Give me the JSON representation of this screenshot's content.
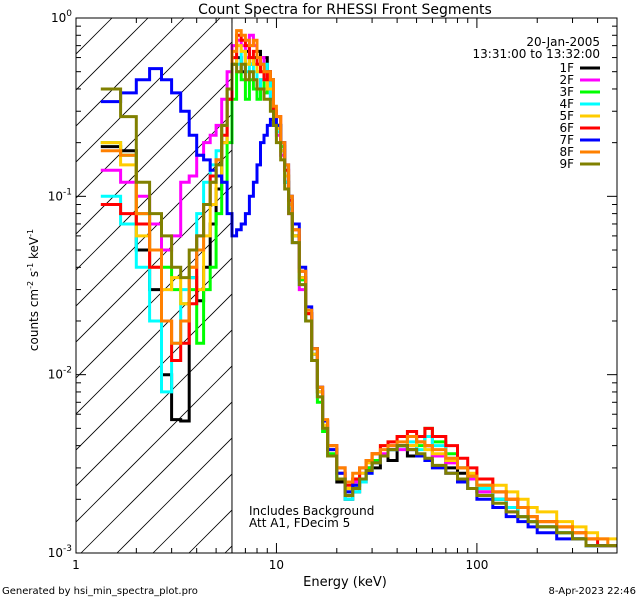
{
  "chart_data": {
    "type": "line",
    "title": "Count Spectra for RHESSI Front Segments",
    "xlabel": "Energy (keV)",
    "ylabel_main": "counts cm",
    "ylabel_sup1": "-2",
    "ylabel_mid": " s",
    "ylabel_sup2": "-1",
    "ylabel_end": " keV",
    "ylabel_sup3": "-1",
    "xscale": "log",
    "yscale": "log",
    "xlim": [
      1,
      500
    ],
    "ylim": [
      0.001,
      1
    ],
    "x_ticks": [
      {
        "value": 1,
        "label": "1"
      },
      {
        "value": 10,
        "label": "10"
      },
      {
        "value": 100,
        "label": "100"
      }
    ],
    "y_ticks": [
      {
        "value": 0.001,
        "base": "10",
        "exp": "-3"
      },
      {
        "value": 0.01,
        "base": "10",
        "exp": "-2"
      },
      {
        "value": 0.1,
        "base": "10",
        "exp": "-1"
      },
      {
        "value": 1,
        "base": "10",
        "exp": "0"
      }
    ],
    "date": "20-Jan-2005",
    "time_range": "13:31:00 to 13:32:00",
    "annotation_line1": "Includes Background",
    "annotation_line2": "Att A1, FDecim 5",
    "attenuator_edge_kev": 6,
    "footer_left": "Generated by hsi_min_spectra_plot.pro",
    "footer_right": "8-Apr-2023 22:46",
    "legend_position": "top-right",
    "energy_bins": [
      1.33,
      1.67,
      2.0,
      2.33,
      2.67,
      3.0,
      3.33,
      3.67,
      4.0,
      4.33,
      4.67,
      5.0,
      5.33,
      5.67,
      6.0,
      6.33,
      6.67,
      7.0,
      7.33,
      7.67,
      8.0,
      8.33,
      8.67,
      9.0,
      9.33,
      9.67,
      10.0,
      10.5,
      11.0,
      11.5,
      12.0,
      13.0,
      14.0,
      15.0,
      16.0,
      17.0,
      18.0,
      20.0,
      22.0,
      24.0,
      26.0,
      28.0,
      30.0,
      33.0,
      36.0,
      40.0,
      45.0,
      50.0,
      55.0,
      60.0,
      70.0,
      80.0,
      90.0,
      100.0,
      120.0,
      140.0,
      160.0,
      180.0,
      200.0,
      250.0,
      300.0,
      350.0,
      400.0,
      450.0,
      500.0
    ],
    "series": [
      {
        "name": "1F",
        "color": "#000000",
        "values": [
          0.19,
          0.18,
          0.05,
          0.03,
          0.01,
          0.0056,
          0.0055,
          0.035,
          0.026,
          0.04,
          0.07,
          0.11,
          0.2,
          0.35,
          0.55,
          0.6,
          0.5,
          0.65,
          0.55,
          0.6,
          0.65,
          0.55,
          0.6,
          0.5,
          0.4,
          0.25,
          0.25,
          0.18,
          0.12,
          0.09,
          0.06,
          0.035,
          0.022,
          0.013,
          0.008,
          0.005,
          0.0035,
          0.0025,
          0.002,
          0.0022,
          0.0025,
          0.003,
          0.003,
          0.0035,
          0.0033,
          0.004,
          0.0035,
          0.0045,
          0.004,
          0.0035,
          0.003,
          0.0028,
          0.0026,
          0.0022,
          0.002,
          0.0018,
          0.0016,
          0.0015,
          0.0014,
          0.0013,
          0.0012,
          0.0011,
          0.0011,
          0.0011
        ]
      },
      {
        "name": "2F",
        "color": "#ff00ff",
        "values": [
          0.14,
          0.12,
          0.1,
          0.07,
          0.05,
          0.06,
          0.12,
          0.13,
          0.17,
          0.2,
          0.22,
          0.25,
          0.35,
          0.5,
          0.7,
          0.75,
          0.7,
          0.6,
          0.8,
          0.7,
          0.55,
          0.6,
          0.5,
          0.45,
          0.35,
          0.3,
          0.22,
          0.17,
          0.12,
          0.08,
          0.055,
          0.03,
          0.02,
          0.012,
          0.008,
          0.005,
          0.0038,
          0.0028,
          0.0022,
          0.0025,
          0.0028,
          0.003,
          0.0032,
          0.0036,
          0.004,
          0.0038,
          0.004,
          0.0042,
          0.004,
          0.0035,
          0.0032,
          0.003,
          0.0026,
          0.0022,
          0.002,
          0.0017,
          0.0016,
          0.0015,
          0.0014,
          0.0013,
          0.0012,
          0.0011,
          0.0011,
          0.0011
        ]
      },
      {
        "name": "3F",
        "color": "#00ff00",
        "values": [
          0.2,
          0.17,
          0.08,
          0.05,
          0.04,
          0.03,
          0.025,
          0.03,
          0.015,
          0.03,
          0.04,
          0.08,
          0.12,
          0.2,
          0.35,
          0.5,
          0.45,
          0.35,
          0.45,
          0.4,
          0.35,
          0.45,
          0.38,
          0.4,
          0.45,
          0.3,
          0.25,
          0.19,
          0.13,
          0.09,
          0.06,
          0.034,
          0.02,
          0.012,
          0.007,
          0.0048,
          0.0036,
          0.0026,
          0.0022,
          0.0024,
          0.0026,
          0.003,
          0.0033,
          0.0035,
          0.0038,
          0.004,
          0.0045,
          0.004,
          0.005,
          0.0042,
          0.0036,
          0.003,
          0.0027,
          0.0024,
          0.002,
          0.0018,
          0.0016,
          0.0015,
          0.0014,
          0.0013,
          0.0012,
          0.0011,
          0.0011,
          0.0011
        ]
      },
      {
        "name": "4F",
        "color": "#00ffff",
        "values": [
          0.1,
          0.07,
          0.04,
          0.02,
          0.008,
          0.015,
          0.03,
          0.035,
          0.08,
          0.12,
          0.15,
          0.18,
          0.25,
          0.4,
          0.6,
          0.55,
          0.65,
          0.5,
          0.55,
          0.5,
          0.4,
          0.45,
          0.55,
          0.45,
          0.35,
          0.28,
          0.23,
          0.18,
          0.12,
          0.085,
          0.055,
          0.032,
          0.02,
          0.013,
          0.0075,
          0.005,
          0.0035,
          0.0026,
          0.002,
          0.0022,
          0.0025,
          0.0028,
          0.0032,
          0.0035,
          0.0038,
          0.004,
          0.0042,
          0.0038,
          0.0045,
          0.004,
          0.0034,
          0.003,
          0.0027,
          0.0023,
          0.002,
          0.0018,
          0.0016,
          0.0015,
          0.0014,
          0.0013,
          0.0012,
          0.0011,
          0.0011,
          0.0011
        ]
      },
      {
        "name": "5F",
        "color": "#ffcc00",
        "values": [
          0.2,
          0.15,
          0.06,
          0.04,
          0.03,
          0.035,
          0.025,
          0.04,
          0.03,
          0.06,
          0.09,
          0.13,
          0.2,
          0.35,
          0.55,
          0.7,
          0.65,
          0.55,
          0.6,
          0.55,
          0.5,
          0.5,
          0.45,
          0.4,
          0.4,
          0.3,
          0.24,
          0.18,
          0.13,
          0.09,
          0.06,
          0.035,
          0.022,
          0.013,
          0.008,
          0.0052,
          0.0038,
          0.0028,
          0.0023,
          0.0026,
          0.0028,
          0.0032,
          0.0036,
          0.004,
          0.0042,
          0.0045,
          0.004,
          0.0042,
          0.0038,
          0.0036,
          0.0033,
          0.003,
          0.0028,
          0.0026,
          0.0024,
          0.0022,
          0.002,
          0.0018,
          0.0017,
          0.0015,
          0.0014,
          0.0013,
          0.0012,
          0.0012
        ]
      },
      {
        "name": "6F",
        "color": "#ff0000",
        "values": [
          0.09,
          0.08,
          0.07,
          0.04,
          0.02,
          0.012,
          0.015,
          0.025,
          0.06,
          0.09,
          0.13,
          0.16,
          0.22,
          0.35,
          0.6,
          0.8,
          0.75,
          0.7,
          0.6,
          0.65,
          0.55,
          0.5,
          0.45,
          0.5,
          0.45,
          0.3,
          0.28,
          0.2,
          0.14,
          0.095,
          0.065,
          0.038,
          0.022,
          0.014,
          0.0085,
          0.0055,
          0.004,
          0.003,
          0.0024,
          0.0026,
          0.003,
          0.0033,
          0.0036,
          0.004,
          0.0042,
          0.0045,
          0.0048,
          0.0045,
          0.005,
          0.0045,
          0.004,
          0.0034,
          0.003,
          0.0026,
          0.0022,
          0.002,
          0.0018,
          0.0016,
          0.0015,
          0.0014,
          0.0013,
          0.0012,
          0.0011,
          0.0011
        ]
      },
      {
        "name": "7F",
        "color": "#0000ff",
        "values": [
          0.34,
          0.38,
          0.45,
          0.52,
          0.45,
          0.38,
          0.3,
          0.22,
          0.17,
          0.16,
          0.14,
          0.13,
          0.12,
          0.08,
          0.06,
          0.065,
          0.07,
          0.08,
          0.1,
          0.12,
          0.15,
          0.2,
          0.22,
          0.25,
          0.27,
          0.3,
          0.25,
          0.2,
          0.15,
          0.1,
          0.07,
          0.04,
          0.024,
          0.014,
          0.0085,
          0.0055,
          0.0038,
          0.0028,
          0.0022,
          0.0024,
          0.0026,
          0.0028,
          0.0032,
          0.0035,
          0.0038,
          0.004,
          0.0038,
          0.0035,
          0.0033,
          0.003,
          0.0028,
          0.0025,
          0.0023,
          0.002,
          0.0018,
          0.0016,
          0.0015,
          0.0014,
          0.0013,
          0.0012,
          0.0012,
          0.0011,
          0.0011,
          0.0011
        ]
      },
      {
        "name": "8F",
        "color": "#ff8000",
        "values": [
          0.18,
          0.17,
          0.08,
          0.05,
          0.02,
          0.015,
          0.02,
          0.04,
          0.05,
          0.09,
          0.12,
          0.16,
          0.25,
          0.4,
          0.65,
          0.85,
          0.8,
          0.75,
          0.7,
          0.75,
          0.6,
          0.55,
          0.5,
          0.5,
          0.45,
          0.32,
          0.28,
          0.2,
          0.15,
          0.1,
          0.065,
          0.038,
          0.023,
          0.014,
          0.0085,
          0.0056,
          0.004,
          0.003,
          0.0025,
          0.0028,
          0.003,
          0.0033,
          0.0036,
          0.0038,
          0.004,
          0.0042,
          0.0045,
          0.0042,
          0.004,
          0.0038,
          0.0034,
          0.003,
          0.0027,
          0.0024,
          0.0022,
          0.002,
          0.0018,
          0.0016,
          0.0015,
          0.0014,
          0.0013,
          0.0012,
          0.0012,
          0.0011
        ]
      },
      {
        "name": "9F",
        "color": "#808000",
        "values": [
          0.4,
          0.28,
          0.12,
          0.08,
          0.06,
          0.04,
          0.035,
          0.05,
          0.06,
          0.09,
          0.12,
          0.15,
          0.25,
          0.4,
          0.55,
          0.5,
          0.55,
          0.45,
          0.5,
          0.45,
          0.4,
          0.4,
          0.35,
          0.35,
          0.3,
          0.25,
          0.2,
          0.16,
          0.11,
          0.08,
          0.055,
          0.032,
          0.02,
          0.012,
          0.0075,
          0.005,
          0.0035,
          0.0026,
          0.0021,
          0.0023,
          0.0026,
          0.0029,
          0.0032,
          0.0035,
          0.0038,
          0.004,
          0.0038,
          0.0036,
          0.0034,
          0.0031,
          0.0028,
          0.0026,
          0.0023,
          0.0021,
          0.0019,
          0.0017,
          0.0016,
          0.0015,
          0.0014,
          0.0013,
          0.0012,
          0.0011,
          0.0011,
          0.0011
        ]
      }
    ]
  }
}
